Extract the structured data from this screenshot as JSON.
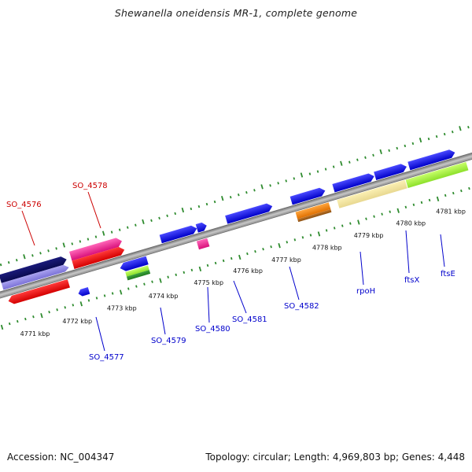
{
  "title": "Shewanella oneidensis MR-1, complete genome",
  "accession_label": "Accession: NC_004347",
  "stats_label": "Topology: circular; Length: 4,969,803 bp; Genes: 4,448",
  "colors": {
    "backbone": "#9a9a9a",
    "ruler": "#2e8b2e",
    "label_red": "#cc0000",
    "label_blue": "#0000cc"
  },
  "scale_labels": [
    {
      "label": "4771 kbp"
    },
    {
      "label": "4772 kbp"
    },
    {
      "label": "4773 kbp"
    },
    {
      "label": "4774 kbp"
    },
    {
      "label": "4775 kbp"
    },
    {
      "label": "4776 kbp"
    },
    {
      "label": "4777 kbp"
    },
    {
      "label": "4778 kbp"
    },
    {
      "label": "4779 kbp"
    },
    {
      "label": "4780 kbp"
    },
    {
      "label": "4781 kbp"
    }
  ],
  "gene_labels": [
    {
      "label": "SO_4576",
      "color": "#cc0000"
    },
    {
      "label": "SO_4578",
      "color": "#cc0000"
    },
    {
      "label": "SO_4577",
      "color": "#0000cc"
    },
    {
      "label": "SO_4579",
      "color": "#0000cc"
    },
    {
      "label": "SO_4580",
      "color": "#0000cc"
    },
    {
      "label": "SO_4581",
      "color": "#0000cc"
    },
    {
      "label": "SO_4582",
      "color": "#0000cc"
    },
    {
      "label": "rpoH",
      "color": "#0000cc"
    },
    {
      "label": "ftsX",
      "color": "#0000cc"
    },
    {
      "label": "ftsE",
      "color": "#0000cc"
    }
  ]
}
